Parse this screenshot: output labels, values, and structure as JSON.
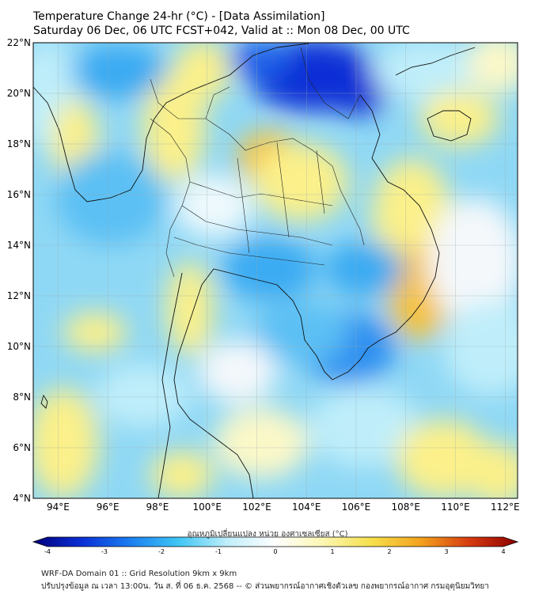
{
  "header": {
    "title": "Temperature Change 24-hr (°C) - [Data Assimilation]",
    "subtitle": "Saturday 06 Dec, 06 UTC FCST+042, Valid at :: Mon 08 Dec, 00 UTC"
  },
  "map": {
    "lat_labels": [
      "22°N",
      "20°N",
      "18°N",
      "16°N",
      "14°N",
      "12°N",
      "10°N",
      "8°N",
      "6°N",
      "4°N"
    ],
    "lon_labels": [
      "94°E",
      "96°E",
      "98°E",
      "100°E",
      "102°E",
      "104°E",
      "106°E",
      "108°E",
      "110°E",
      "112°E"
    ],
    "lat_range": [
      4,
      22
    ],
    "lon_range": [
      93,
      112.5
    ],
    "colors": {
      "cold_strong": "#0a2fd6",
      "cold": "#3aaaf2",
      "cool": "#8fd8f5",
      "neutral": "#f4f8fb",
      "warm": "#fbf08a",
      "warm_strong": "#f6c23c",
      "hot": "#e8961e"
    }
  },
  "colorbar": {
    "label": "อุณหภูมิเปลี่ยนแปลง หน่วย องศาเซลเซียส (°C)",
    "ticks": [
      "-4",
      "-3",
      "-2",
      "-1",
      "0",
      "1",
      "2",
      "3",
      "4"
    ],
    "range": [
      -4,
      4
    ],
    "stops": [
      "#00007a",
      "#0a2fd6",
      "#1a7ef0",
      "#3fc6f5",
      "#bfeefa",
      "#ffffff",
      "#fbf7b0",
      "#f6df4a",
      "#f3a21e",
      "#d63b10",
      "#8c0000"
    ]
  },
  "footer": {
    "line1": "WRF-DA Domain 01 :: Grid Resolution 9km x 9km",
    "line2": "ปรับปรุงข้อมูล ณ เวลา 13:00น. วัน ส. ที่ 06 ธ.ค. 2568 -- © ส่วนพยากรณ์อากาศเชิงตัวเลข กองพยากรณ์อากาศ กรมอุตุนิยมวิทยา"
  }
}
